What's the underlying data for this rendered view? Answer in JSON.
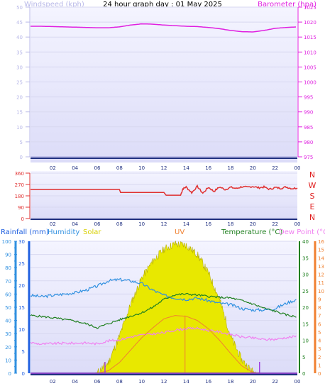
{
  "title": "24 hour graph day : 01 May 2025",
  "colors": {
    "windspeed": "#b8b8e8",
    "barometer": "#e020e0",
    "wind_dir": "#e03030",
    "compass": "#e02020",
    "rainfall": "#2060e0",
    "humidity": "#3090e0",
    "solar": "#e8e800",
    "uv": "#f08030",
    "temperature": "#208020",
    "dew_point": "#f080f0",
    "time_axis": "#203080"
  },
  "chart_data": [
    {
      "type": "line",
      "name": "windspeed-barometer",
      "left_label": "Windspeed (kph)",
      "right_label": "Barometer (hpa)",
      "x_ticks": [
        "02",
        "04",
        "06",
        "08",
        "10",
        "12",
        "14",
        "16",
        "18",
        "20",
        "22",
        "00"
      ],
      "left_ticks": [
        "0",
        "5",
        "10",
        "15",
        "20",
        "25",
        "30",
        "35",
        "40",
        "45",
        "50"
      ],
      "right_ticks": [
        "975",
        "980",
        "985",
        "990",
        "995",
        "1000",
        "1005",
        "1010",
        "1015",
        "1020",
        "1025"
      ],
      "ylim_left": [
        0,
        50
      ],
      "ylim_right": [
        975,
        1025
      ],
      "series": [
        {
          "values_hours": [
            0,
            1,
            2,
            3,
            4,
            5,
            6,
            7,
            8,
            9,
            10,
            11,
            12,
            13,
            14,
            15,
            16,
            17,
            18,
            19,
            20,
            21,
            22,
            23,
            24
          ],
          "values": [
            1018.6,
            1018.6,
            1018.5,
            1018.4,
            1018.3,
            1018.2,
            1018.1,
            1018.1,
            1018.4,
            1019.0,
            1019.4,
            1019.3,
            1019.0,
            1018.8,
            1018.6,
            1018.5,
            1018.2,
            1017.8,
            1017.2,
            1016.8,
            1016.7,
            1017.2,
            1017.9,
            1018.2,
            1018.4
          ]
        }
      ]
    },
    {
      "type": "line",
      "name": "wind-direction",
      "left_ticks": [
        "0",
        "90",
        "180",
        "270",
        "360"
      ],
      "compass_labels": [
        "N",
        "W",
        "S",
        "E",
        "N"
      ],
      "ylim": [
        0,
        360
      ],
      "x_ticks": [
        "02",
        "04",
        "06",
        "08",
        "10",
        "12",
        "14",
        "16",
        "18",
        "20",
        "22",
        "00"
      ],
      "series": [
        {
          "hours": [
            0,
            8,
            8.1,
            12,
            12.2,
            13.5,
            13.7,
            14,
            14.5,
            15,
            15.5,
            16,
            16.5,
            17,
            17.5,
            18,
            18.5,
            19,
            19.5,
            20,
            20.5,
            21,
            21.5,
            22,
            22.5,
            23,
            23.5,
            24
          ],
          "values": [
            230,
            230,
            207,
            207,
            185,
            185,
            235,
            250,
            205,
            255,
            200,
            248,
            215,
            250,
            230,
            248,
            238,
            252,
            248,
            255,
            244,
            250,
            232,
            246,
            240,
            250,
            238,
            242
          ]
        }
      ]
    },
    {
      "type": "line",
      "name": "rain-humidity-solar-uv-temperature-dewpoint",
      "legend": [
        "Rainfall (mm)",
        "Humidity",
        "Solar",
        "UV",
        "Temperature (°C)",
        "Dew Point (°C)"
      ],
      "humidity_ticks": [
        "0",
        "10",
        "20",
        "30",
        "40",
        "50",
        "60",
        "70",
        "80",
        "90",
        "100"
      ],
      "rain_ticks": [
        "0",
        "5",
        "10",
        "15",
        "20",
        "25",
        "30"
      ],
      "temp_ticks": [
        "0",
        "5",
        "10",
        "15",
        "20",
        "25",
        "30",
        "35",
        "40"
      ],
      "uv_ticks": [
        "0",
        "1",
        "2",
        "3",
        "4",
        "5",
        "6",
        "7",
        "8",
        "9",
        "10",
        "11",
        "12",
        "13",
        "14",
        "15",
        "16"
      ],
      "x_ticks": [
        "02",
        "04",
        "06",
        "08",
        "10",
        "12",
        "14",
        "16",
        "18",
        "20",
        "22",
        "00"
      ],
      "humidity_ylim": [
        0,
        100
      ],
      "temp_ylim": [
        0,
        40
      ],
      "uv_ylim": [
        0,
        16
      ],
      "hours": [
        0,
        1,
        2,
        3,
        4,
        5,
        6,
        7,
        8,
        9,
        10,
        11,
        12,
        13,
        14,
        15,
        16,
        17,
        18,
        19,
        20,
        21,
        22,
        23,
        24
      ],
      "series": [
        {
          "name": "Humidity",
          "values": [
            59,
            58,
            59,
            60,
            61,
            63,
            66,
            70,
            71,
            70,
            68,
            63,
            59,
            57,
            56,
            57,
            55,
            53,
            52,
            49,
            48,
            48,
            49,
            53,
            56
          ]
        },
        {
          "name": "Temperature (°C)",
          "values": [
            17.5,
            17.2,
            16.8,
            16.3,
            15.8,
            15.0,
            13.8,
            15.0,
            16.2,
            17.3,
            18.3,
            20.0,
            22.4,
            23.8,
            24.0,
            23.7,
            23.3,
            23.0,
            22.8,
            22.0,
            21.0,
            19.7,
            18.8,
            17.7,
            17.0
          ]
        },
        {
          "name": "Dew Point (°C)",
          "values": [
            9.3,
            8.8,
            9.0,
            9.1,
            9.1,
            9.2,
            8.9,
            9.8,
            10.1,
            11.0,
            11.6,
            11.9,
            12.3,
            13.1,
            13.5,
            13.6,
            13.0,
            12.5,
            11.8,
            11.0,
            10.7,
            10.2,
            10.3,
            10.8,
            11.2
          ]
        },
        {
          "name": "Solar",
          "values_pct": [
            0,
            0,
            0,
            0,
            0,
            0,
            0.5,
            8,
            28,
            52,
            72,
            85,
            94,
            98,
            97,
            90,
            76,
            56,
            28,
            10,
            1,
            0,
            0,
            0,
            0
          ]
        },
        {
          "name": "UV",
          "values": [
            0,
            0,
            0,
            0,
            0,
            0,
            0,
            0.3,
            1.3,
            2.8,
            4.3,
            5.5,
            6.6,
            7.0,
            6.9,
            6.4,
            5.4,
            4.0,
            2.4,
            0.9,
            0.1,
            0,
            0,
            0,
            0
          ]
        }
      ],
      "markers_hours": [
        6.7,
        13.9,
        20.6
      ],
      "rainfall_total": 0
    }
  ]
}
